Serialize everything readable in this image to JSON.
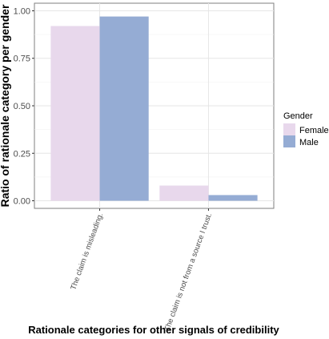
{
  "chart_data": {
    "type": "bar",
    "xlabel": "Rationale categories for other signals of credibility",
    "ylabel": "Ratio of rationale category per gender",
    "categories": [
      "The claim is misleading.",
      "The claim is not from a source I trust."
    ],
    "series": [
      {
        "name": "Female",
        "color": "#e8d8ec",
        "values": [
          0.92,
          0.08
        ]
      },
      {
        "name": "Male",
        "color": "#95acd4",
        "values": [
          0.97,
          0.03
        ]
      }
    ],
    "ylim": [
      -0.04,
      1.04
    ],
    "yticks": [
      "0.00",
      "0.25",
      "0.50",
      "0.75",
      "1.00"
    ],
    "ytick_values": [
      0,
      0.25,
      0.5,
      0.75,
      1.0
    ],
    "grid": true,
    "legend": {
      "title": "Gender",
      "position": "right"
    }
  }
}
